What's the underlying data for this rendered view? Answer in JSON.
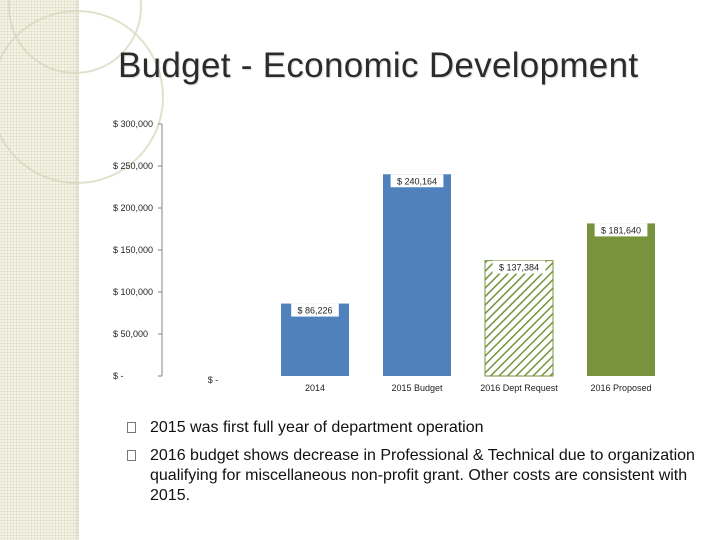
{
  "slide": {
    "title": "Budget - Economic Development",
    "bullets": [
      "2015 was first full year of department operation",
      "2016 budget shows decrease in Professional & Technical due to organization qualifying for miscellaneous non-profit grant. Other costs are consistent with 2015."
    ],
    "bullet_icon": "square-bullet-icon"
  },
  "chart_data": {
    "type": "bar",
    "categories": [
      "",
      "2014",
      "2015 Budget",
      "2016 Dept Request",
      "2016 Proposed"
    ],
    "values": [
      0,
      86226,
      240164,
      137384,
      181640
    ],
    "data_labels": [
      "$ -",
      "$ 86,226",
      "$ 240,164",
      "$ 137,384",
      "$ 181,640"
    ],
    "bar_colors": [
      "#4f81bd",
      "#4f81bd",
      "#4f81bd",
      "pattern-green-diagonal",
      "#77933c"
    ],
    "ylim": [
      0,
      300000
    ],
    "y_ticks": [
      0,
      50000,
      100000,
      150000,
      200000,
      250000,
      300000
    ],
    "y_tick_labels": [
      "$ -",
      "$ 50,000",
      "$ 100,000",
      "$ 150,000",
      "$ 200,000",
      "$ 250,000",
      "$ 300,000"
    ],
    "grid": false,
    "legend": "none"
  }
}
